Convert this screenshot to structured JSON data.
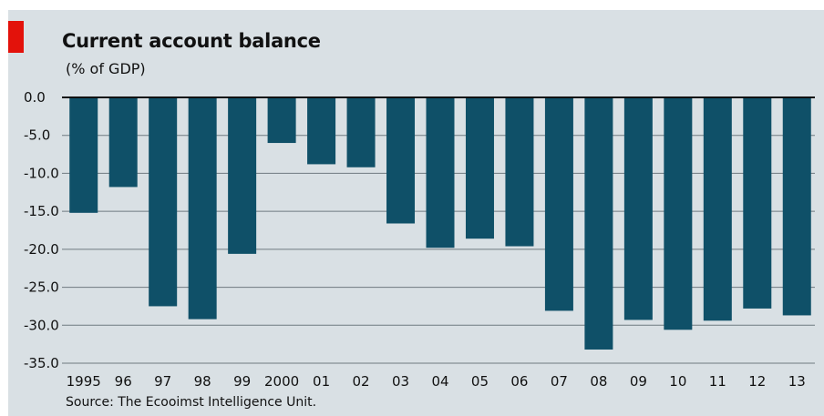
{
  "chart_data": {
    "type": "bar",
    "title": "Current account balance",
    "subtitle": "(% of GDP)",
    "source": "Source: The Ecooimst Intelligence Unit.",
    "categories": [
      "1995",
      "96",
      "97",
      "98",
      "99",
      "2000",
      "01",
      "02",
      "03",
      "04",
      "05",
      "06",
      "07",
      "08",
      "09",
      "10",
      "11",
      "12",
      "13"
    ],
    "values": [
      -15.2,
      -11.8,
      -27.5,
      -29.2,
      -20.6,
      -6.0,
      -8.8,
      -9.2,
      -16.6,
      -19.8,
      -18.6,
      -19.6,
      -28.1,
      -33.2,
      -29.3,
      -30.6,
      -29.4,
      -27.8,
      -28.7
    ],
    "yticks": [
      "0.0",
      "-5.0",
      "-10.0",
      "-15.0",
      "-20.0",
      "-25.0",
      "-30.0",
      "-35.0"
    ],
    "ylim": [
      -35,
      0
    ],
    "grid": true,
    "bar_color": "#0f5068",
    "background_color": "#d9e0e4",
    "accent_color": "#e3120b"
  }
}
